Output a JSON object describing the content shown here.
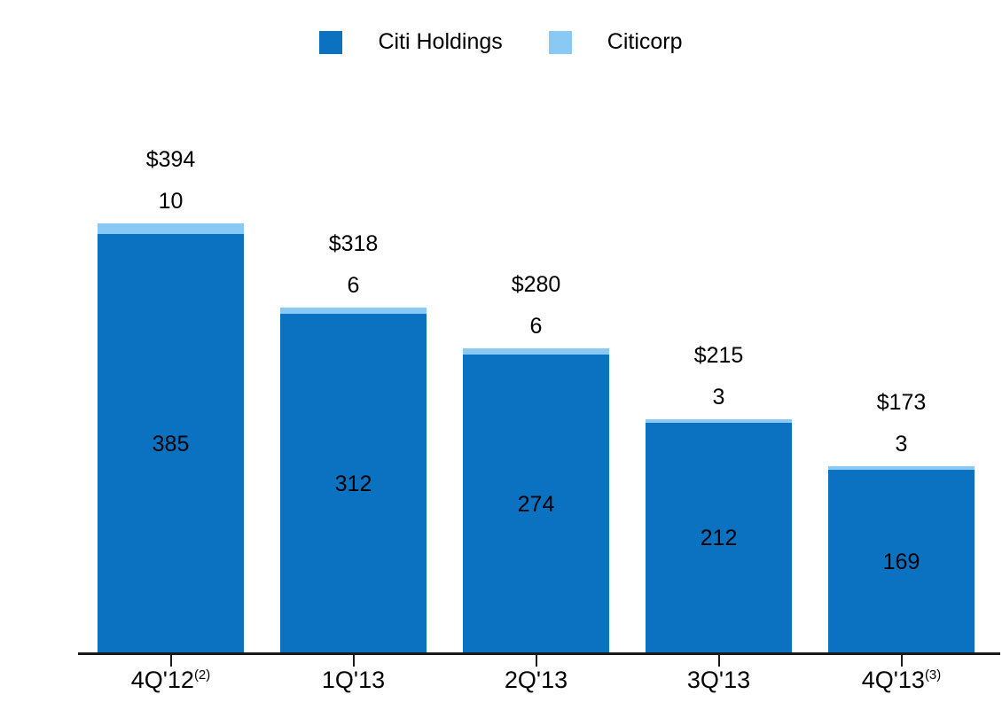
{
  "legend": {
    "items": [
      {
        "label": "Citi Holdings",
        "color": "#0a72c0"
      },
      {
        "label": "Citicorp",
        "color": "#8bc9f5"
      }
    ]
  },
  "chart_data": {
    "type": "bar",
    "stacked": true,
    "title": "",
    "xlabel": "",
    "ylabel": "",
    "grid": false,
    "legend_position": "top",
    "axes_shown": "x-only",
    "ylim": [
      0,
      420
    ],
    "categories": [
      "4Q'12",
      "1Q'13",
      "2Q'13",
      "3Q'13",
      "4Q'13"
    ],
    "category_footnotes": [
      "(2)",
      "",
      "",
      "",
      "(3)"
    ],
    "series": [
      {
        "name": "Citi Holdings",
        "color": "#0a72c0",
        "values": [
          385,
          312,
          274,
          212,
          169
        ]
      },
      {
        "name": "Citicorp",
        "color": "#8bc9f5",
        "values": [
          10,
          6,
          6,
          3,
          3
        ]
      }
    ],
    "total_labels": [
      "$394",
      "$318",
      "$280",
      "$215",
      "$173"
    ],
    "total_values": [
      394,
      318,
      280,
      215,
      173
    ]
  }
}
